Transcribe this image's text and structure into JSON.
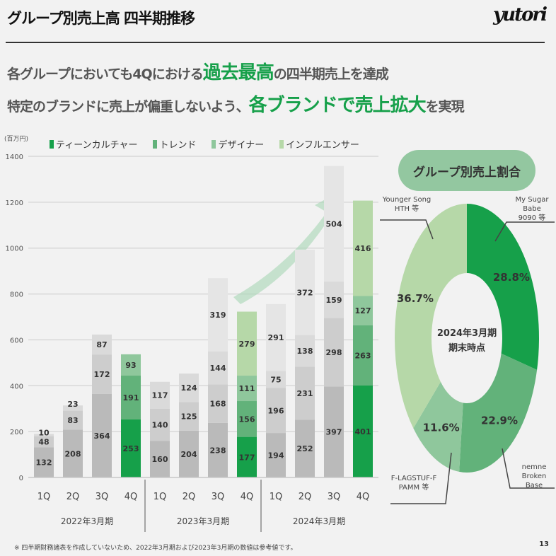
{
  "header": {
    "title": "グループ別売上高 四半期推移",
    "logo": "yutori"
  },
  "headline": {
    "line1_pre": "各グループにおいても4Qにおける",
    "line1_em": "過去最高",
    "line1_post": "の四半期売上を達成",
    "line2_pre": "特定のブランドに売上が偏重しないよう、",
    "line2_em": "各ブランドで売上拡大",
    "line2_post": "を実現"
  },
  "colors": {
    "teen": "#16a04a",
    "trend": "#62b27a",
    "designer": "#8fc79c",
    "influencer": "#b6d8a8",
    "gray": [
      "#bababa",
      "#cdcdcd",
      "#dadada",
      "#e5e5e5"
    ]
  },
  "chart_data": [
    {
      "type": "bar",
      "stacked": true,
      "unit": "(百万円)",
      "ylim": [
        0,
        1400
      ],
      "yticks": [
        0,
        200,
        400,
        600,
        800,
        1000,
        1200,
        1400
      ],
      "legend": [
        "ティーンカルチャー",
        "トレンド",
        "デザイナー",
        "インフルエンサー"
      ],
      "categories": [
        "1Q",
        "2Q",
        "3Q",
        "4Q",
        "1Q",
        "2Q",
        "3Q",
        "4Q",
        "1Q",
        "2Q",
        "3Q",
        "4Q"
      ],
      "groups": [
        "2022年3月期",
        "2023年3月期",
        "2024年3月期"
      ],
      "series": [
        {
          "name": "ティーンカルチャー",
          "values": [
            132,
            208,
            364,
            253,
            160,
            204,
            238,
            177,
            194,
            252,
            397,
            401
          ]
        },
        {
          "name": "トレンド",
          "values": [
            48,
            83,
            172,
            191,
            140,
            125,
            168,
            156,
            196,
            231,
            298,
            263
          ]
        },
        {
          "name": "デザイナー",
          "values": [
            10,
            23,
            87,
            93,
            117,
            124,
            144,
            111,
            75,
            138,
            159,
            127
          ]
        },
        {
          "name": "インフルエンサー",
          "values": [
            0,
            0,
            0,
            0,
            0,
            0,
            319,
            279,
            291,
            372,
            504,
            416
          ]
        }
      ]
    },
    {
      "type": "pie",
      "title": "グループ別売上割合",
      "center_label": [
        "2024年3月期",
        "期末時点"
      ],
      "slices": [
        {
          "name": "ティーンカルチャー",
          "value": 28.8,
          "label": "28.8%",
          "brands": [
            "My Sugar Babe",
            "9090 等"
          ]
        },
        {
          "name": "トレンド",
          "value": 22.9,
          "label": "22.9%",
          "brands": [
            "nemne",
            "Broken Base"
          ]
        },
        {
          "name": "デザイナー",
          "value": 11.6,
          "label": "11.6%",
          "brands": [
            "F-LAGSTUF-F",
            "PAMM 等"
          ]
        },
        {
          "name": "インフルエンサー",
          "value": 36.7,
          "label": "36.7%",
          "brands": [
            "Younger Song",
            "HTH 等"
          ]
        }
      ]
    }
  ],
  "footer": {
    "note": "※ 四半期財務諸表を作成していないため、2022年3月期および2023年3月期の数値は参考値です。",
    "page": "13"
  }
}
